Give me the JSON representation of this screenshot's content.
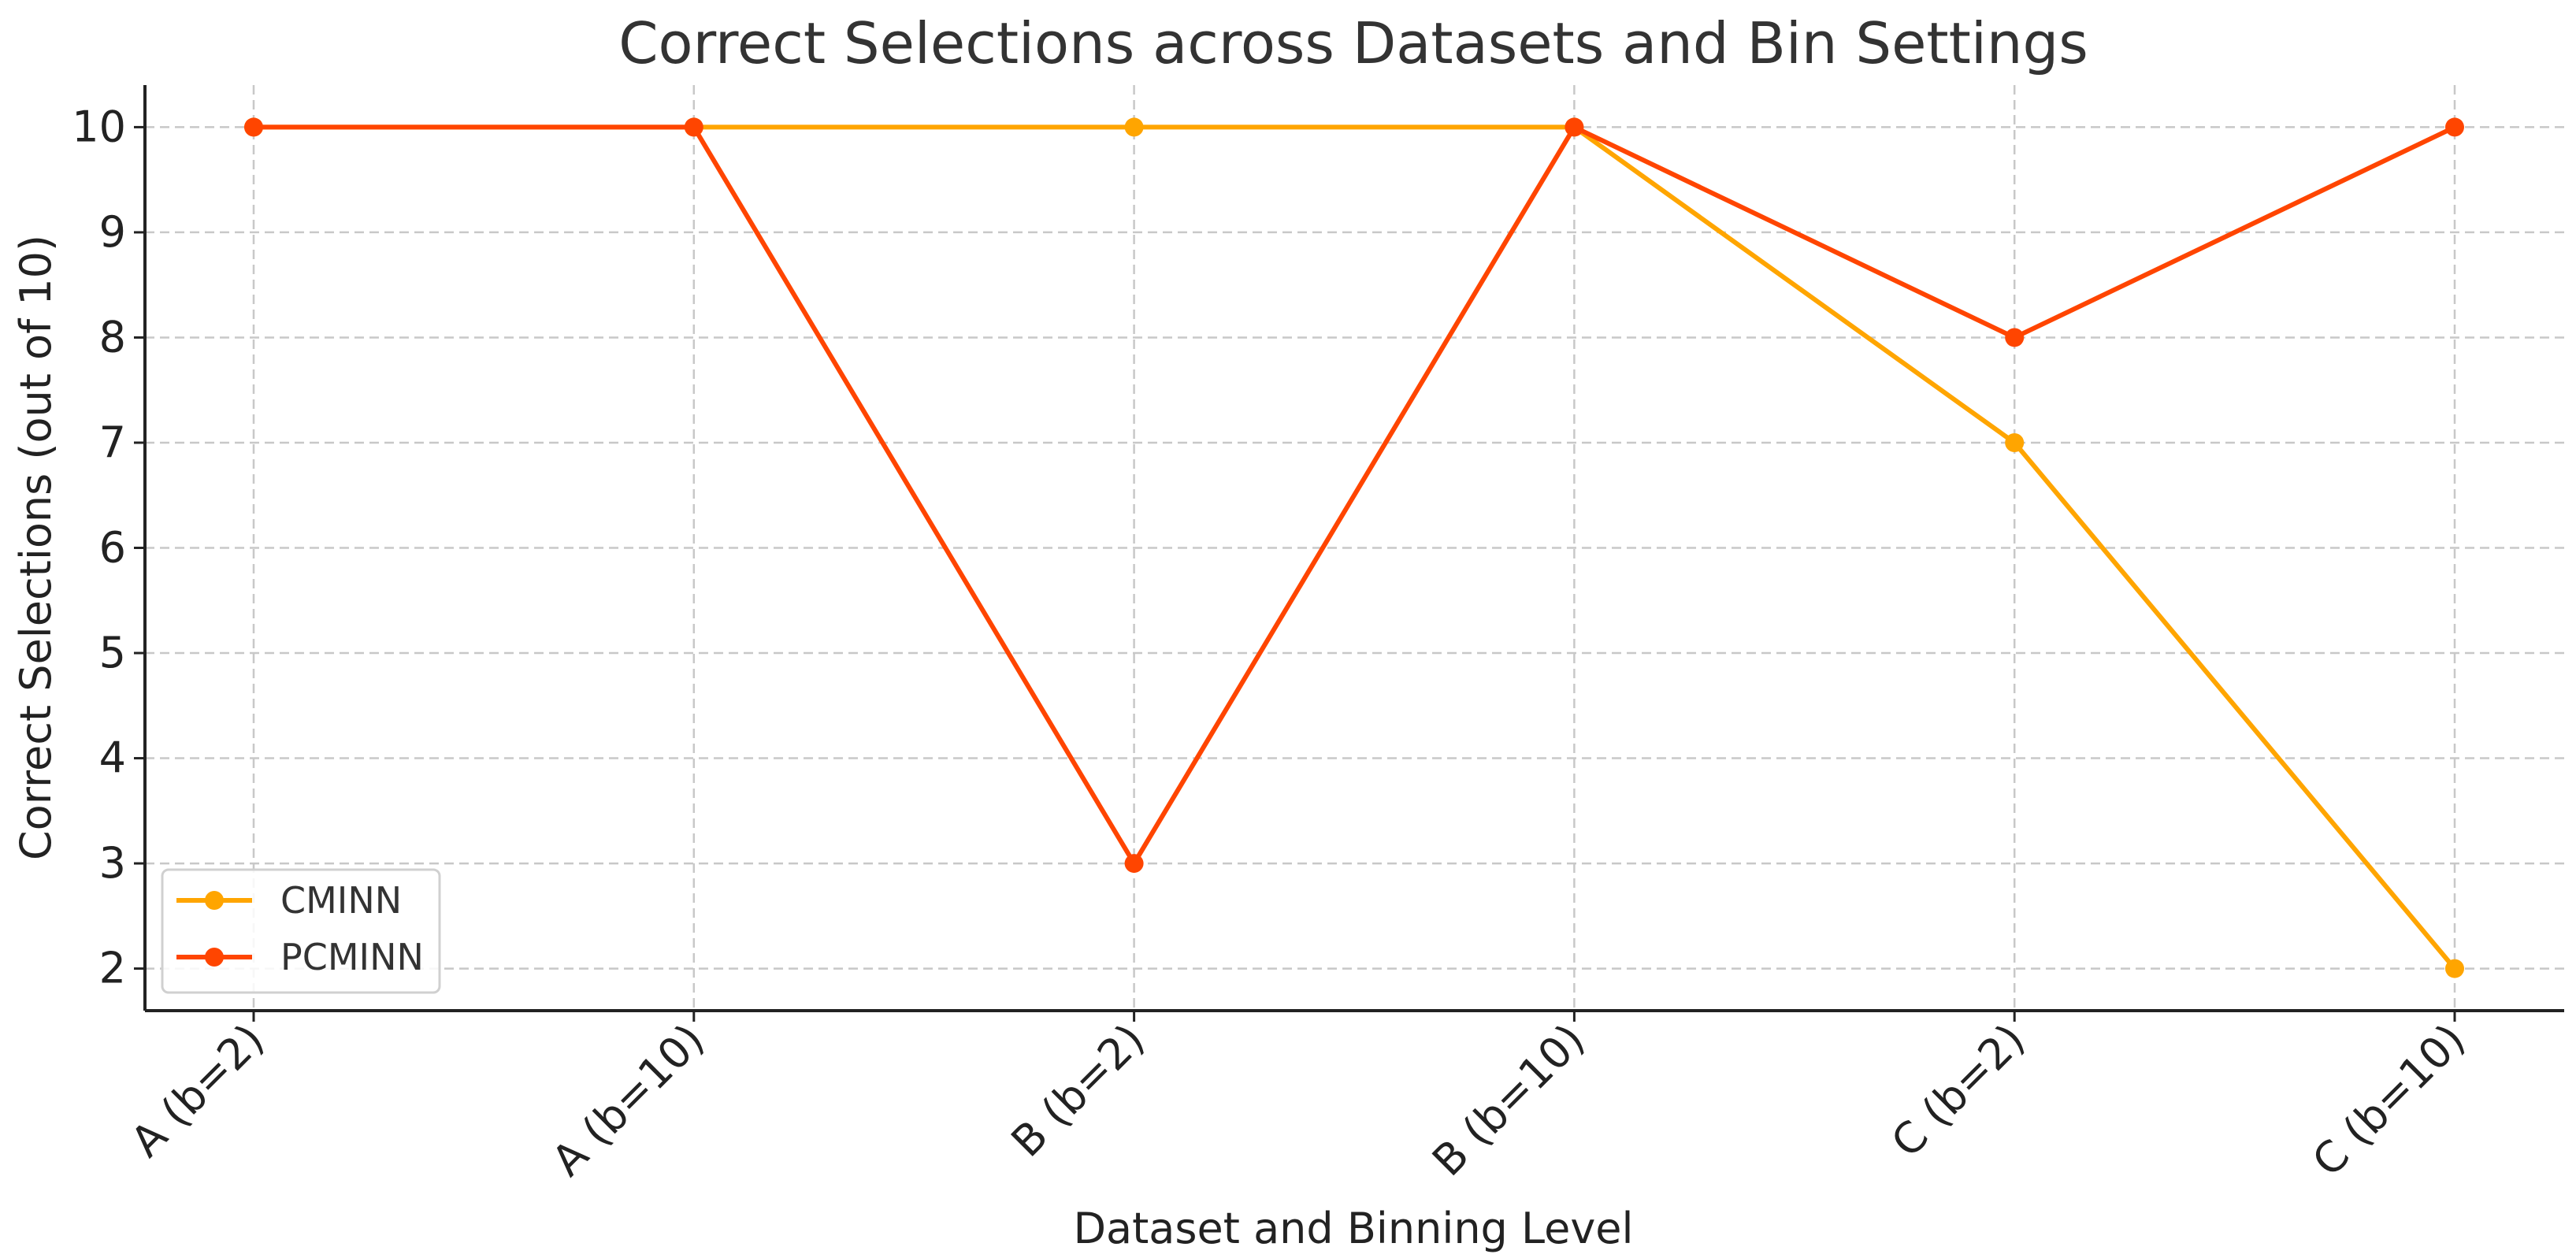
{
  "chart_data": {
    "type": "line",
    "title": "Correct Selections across Datasets and Bin Settings",
    "xlabel": "Dataset and Binning Level",
    "ylabel": "Correct Selections (out of 10)",
    "categories": [
      "A (b=2)",
      "A (b=10)",
      "B (b=2)",
      "B (b=10)",
      "C (b=2)",
      "C (b=10)"
    ],
    "series": [
      {
        "name": "CMINN",
        "values": [
          10,
          10,
          10,
          10,
          7,
          2
        ],
        "color": "#FFA500"
      },
      {
        "name": "PCMINN",
        "values": [
          10,
          10,
          3,
          10,
          8,
          10
        ],
        "color": "#FF4500"
      }
    ],
    "ylim": [
      1.6,
      10.4
    ],
    "yticks": [
      2,
      3,
      4,
      5,
      6,
      7,
      8,
      9,
      10
    ],
    "grid": true,
    "legend": "lower-left"
  }
}
